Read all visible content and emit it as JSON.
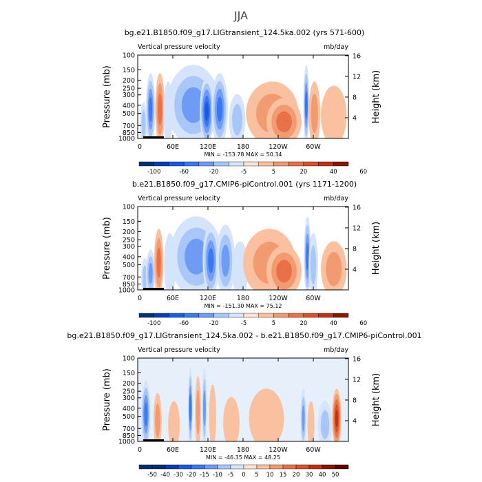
{
  "figure": {
    "season": "JJA"
  },
  "colors": {
    "palette_negative": [
      "#05306e",
      "#0b3cb0",
      "#1c5ae6",
      "#3a78f2",
      "#6e9cf5",
      "#a8c6f8",
      "#d6e4fb"
    ],
    "palette_positive": [
      "#fde4d2",
      "#f9c1a0",
      "#f29a70",
      "#e8714a",
      "#d9512b",
      "#b93316",
      "#8b1408",
      "#5a0500"
    ]
  },
  "chart_data": [
    {
      "type": "heatmap",
      "title": "bg.e21.B1850.f09_g17.LIGtransient_124.5ka.002 (yrs 571-600)",
      "left_label": "Vertical pressure velocity",
      "right_label": "mb/day",
      "ylabel": "Pressure (mb)",
      "y2label": "Height (km)",
      "x_ticks": [
        "0",
        "60E",
        "120E",
        "180",
        "120W",
        "60W"
      ],
      "y_ticks": [
        "100",
        "150",
        "200",
        "250",
        "300",
        "400",
        "500",
        "700",
        "850",
        "1000"
      ],
      "y2_ticks": [
        "16",
        "12",
        "8",
        "4"
      ],
      "stats": {
        "min_label": "MIN = ",
        "min": "-153.78",
        "max_label": "MAX = ",
        "max": "50.34"
      },
      "colorbar_labels": [
        "-100",
        "-60",
        "-20",
        "-5",
        "5",
        "20",
        "40",
        "60"
      ],
      "features": [
        {
          "lon": 10,
          "width": 6,
          "level": -2,
          "top": 0.55
        },
        {
          "lon": 22,
          "width": 8,
          "level": -4,
          "top": 0.2
        },
        {
          "lon": 38,
          "width": 8,
          "level": 3,
          "top": 0.2
        },
        {
          "lon": 52,
          "width": 8,
          "level": -1,
          "top": 0.3
        },
        {
          "lon": 95,
          "width": 45,
          "level": -3,
          "top": 0.1
        },
        {
          "lon": 118,
          "width": 12,
          "level": -5,
          "top": 0.25
        },
        {
          "lon": 140,
          "width": 14,
          "level": -4,
          "top": 0.2
        },
        {
          "lon": 170,
          "width": 14,
          "level": -2,
          "top": 0.45
        },
        {
          "lon": 230,
          "width": 45,
          "level": 2,
          "top": 0.3
        },
        {
          "lon": 250,
          "width": 30,
          "level": 3,
          "top": 0.5
        },
        {
          "lon": 288,
          "width": 5,
          "level": -4,
          "top": 0.1
        },
        {
          "lon": 302,
          "width": 10,
          "level": 2,
          "top": 0.3
        },
        {
          "lon": 335,
          "width": 22,
          "level": 1,
          "top": 0.35
        }
      ]
    },
    {
      "type": "heatmap",
      "title": "b.e21.B1850.f09_g17.CMIP6-piControl.001 (yrs 1171-1200)",
      "left_label": "Vertical pressure velocity",
      "right_label": "mb/day",
      "ylabel": "Pressure (mb)",
      "y2label": "Height (km)",
      "x_ticks": [
        "0",
        "60E",
        "120E",
        "180",
        "120W",
        "60W"
      ],
      "y_ticks": [
        "100",
        "150",
        "200",
        "250",
        "300",
        "400",
        "500",
        "700",
        "850",
        "1000"
      ],
      "y2_ticks": [
        "16",
        "12",
        "8",
        "4"
      ],
      "stats": {
        "min_label": "MIN = ",
        "min": "-151.30",
        "max_label": "MAX = ",
        "max": "75.12"
      },
      "colorbar_labels": [
        "-100",
        "-60",
        "-20",
        "-5",
        "5",
        "20",
        "40",
        "60"
      ],
      "features": [
        {
          "lon": 12,
          "width": 6,
          "level": -2,
          "top": 0.6
        },
        {
          "lon": 22,
          "width": 8,
          "level": -3,
          "top": 0.5
        },
        {
          "lon": 36,
          "width": 8,
          "level": 3,
          "top": 0.25
        },
        {
          "lon": 55,
          "width": 10,
          "level": -1,
          "top": 0.3
        },
        {
          "lon": 100,
          "width": 45,
          "level": -3,
          "top": 0.1
        },
        {
          "lon": 125,
          "width": 14,
          "level": -4,
          "top": 0.2
        },
        {
          "lon": 150,
          "width": 16,
          "level": -3,
          "top": 0.2
        },
        {
          "lon": 175,
          "width": 14,
          "level": -1,
          "top": 0.4
        },
        {
          "lon": 225,
          "width": 45,
          "level": 2,
          "top": 0.25
        },
        {
          "lon": 250,
          "width": 30,
          "level": 3,
          "top": 0.45
        },
        {
          "lon": 290,
          "width": 6,
          "level": -4,
          "top": 0.1
        },
        {
          "lon": 300,
          "width": 8,
          "level": -2,
          "top": 0.3
        },
        {
          "lon": 335,
          "width": 22,
          "level": 2,
          "top": 0.4
        }
      ]
    },
    {
      "type": "heatmap",
      "title": "bg.e21.B1850.f09_g17.LIGtransient_124.5ka.002 - b.e21.B1850.f09_g17.CMIP6-piControl.001",
      "left_label": "Vertical pressure velocity",
      "right_label": "mb/day",
      "ylabel": "Pressure (mb)",
      "y2label": "Height (km)",
      "x_ticks": [
        "0",
        "60E",
        "120E",
        "180",
        "120W",
        "60W"
      ],
      "y_ticks": [
        "100",
        "150",
        "200",
        "250",
        "300",
        "400",
        "500",
        "700",
        "850",
        "1000"
      ],
      "y2_ticks": [
        "16",
        "12",
        "8",
        "4"
      ],
      "stats": {
        "min_label": "MIN = ",
        "min": "-46.35",
        "max_label": "MAX = ",
        "max": "48.25"
      },
      "colorbar_labels": [
        "-50",
        "-40",
        "-30",
        "-20",
        "-15",
        "-10",
        "-5",
        "0",
        "5",
        "10",
        "15",
        "20",
        "30",
        "40",
        "50"
      ],
      "features": [
        {
          "lon": 14,
          "width": 8,
          "level": -4,
          "top": 0.25
        },
        {
          "lon": 34,
          "width": 7,
          "level": 2,
          "top": 0.4
        },
        {
          "lon": 62,
          "width": 10,
          "level": 1,
          "top": 0.5
        },
        {
          "lon": 90,
          "width": 4,
          "level": -4,
          "top": 0.1
        },
        {
          "lon": 103,
          "width": 5,
          "level": 2,
          "top": 0.2
        },
        {
          "lon": 114,
          "width": 4,
          "level": -3,
          "top": 0.1
        },
        {
          "lon": 128,
          "width": 6,
          "level": 1,
          "top": 0.3
        },
        {
          "lon": 160,
          "width": 14,
          "level": 1,
          "top": 0.45
        },
        {
          "lon": 220,
          "width": 30,
          "level": 1,
          "top": 0.35
        },
        {
          "lon": 283,
          "width": 5,
          "level": -3,
          "top": 0.35
        },
        {
          "lon": 296,
          "width": 6,
          "level": 1,
          "top": 0.5
        },
        {
          "lon": 320,
          "width": 12,
          "level": -2,
          "top": 0.5
        },
        {
          "lon": 340,
          "width": 8,
          "level": 5,
          "top": 0.35
        }
      ]
    }
  ]
}
